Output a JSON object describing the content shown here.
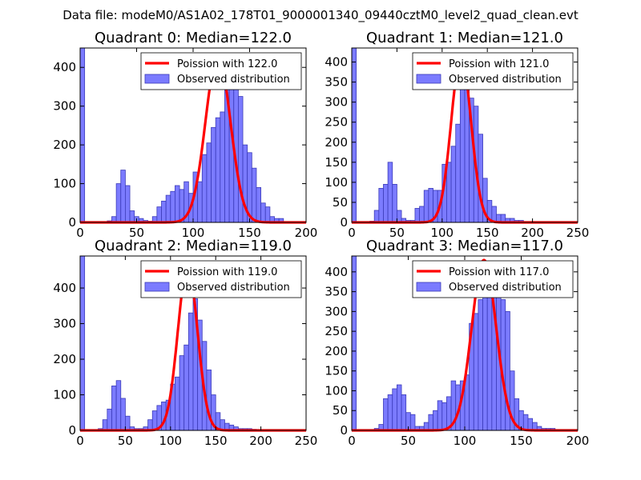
{
  "figure": {
    "suptitle": "Data file: modeM0/AS1A02_178T01_9000001340_09440cztM0_level2_quad_clean.evt"
  },
  "colors": {
    "bars": "#7b7bff",
    "bar_edge": "#3b3bb8",
    "poisson": "#ff0000"
  },
  "chart_data": [
    {
      "type": "bar",
      "title": "Quadrant 0: Median=122.0",
      "xlim": [
        0,
        200
      ],
      "ylim": [
        0,
        450
      ],
      "xticks": [
        "0",
        "50",
        "100",
        "150",
        "200"
      ],
      "yticks": [
        "0",
        "100",
        "200",
        "300",
        "400"
      ],
      "legend": {
        "line": "Poission with 122.0",
        "bars": "Observed distribution"
      },
      "bin_width": 4,
      "bins": [
        [
          0,
          450
        ],
        [
          20,
          2
        ],
        [
          24,
          4
        ],
        [
          28,
          15
        ],
        [
          32,
          100
        ],
        [
          36,
          135
        ],
        [
          40,
          95
        ],
        [
          44,
          30
        ],
        [
          48,
          15
        ],
        [
          52,
          10
        ],
        [
          56,
          5
        ],
        [
          60,
          3
        ],
        [
          64,
          15
        ],
        [
          68,
          40
        ],
        [
          72,
          55
        ],
        [
          76,
          70
        ],
        [
          80,
          80
        ],
        [
          84,
          95
        ],
        [
          88,
          85
        ],
        [
          92,
          105
        ],
        [
          96,
          75
        ],
        [
          100,
          130
        ],
        [
          104,
          105
        ],
        [
          108,
          175
        ],
        [
          112,
          205
        ],
        [
          116,
          245
        ],
        [
          120,
          270
        ],
        [
          124,
          285
        ],
        [
          128,
          430
        ],
        [
          132,
          370
        ],
        [
          136,
          350
        ],
        [
          140,
          325
        ],
        [
          144,
          200
        ],
        [
          148,
          180
        ],
        [
          152,
          140
        ],
        [
          156,
          90
        ],
        [
          160,
          50
        ],
        [
          164,
          40
        ],
        [
          168,
          15
        ],
        [
          172,
          10
        ],
        [
          176,
          10
        ]
      ],
      "poisson": {
        "mean": 122.0,
        "peak": 430
      }
    },
    {
      "type": "bar",
      "title": "Quadrant 1: Median=121.0",
      "xlim": [
        0,
        250
      ],
      "ylim": [
        0,
        435
      ],
      "xticks": [
        "0",
        "50",
        "100",
        "150",
        "200",
        "250"
      ],
      "yticks": [
        "0",
        "50",
        "100",
        "150",
        "200",
        "250",
        "300",
        "350",
        "400"
      ],
      "legend": {
        "line": "Poission with 121.0",
        "bars": "Observed distribution"
      },
      "bin_width": 5,
      "bins": [
        [
          0,
          435
        ],
        [
          20,
          3
        ],
        [
          25,
          30
        ],
        [
          30,
          85
        ],
        [
          35,
          95
        ],
        [
          40,
          150
        ],
        [
          45,
          95
        ],
        [
          50,
          30
        ],
        [
          55,
          10
        ],
        [
          60,
          5
        ],
        [
          65,
          5
        ],
        [
          70,
          35
        ],
        [
          75,
          40
        ],
        [
          80,
          80
        ],
        [
          85,
          85
        ],
        [
          90,
          80
        ],
        [
          95,
          80
        ],
        [
          100,
          145
        ],
        [
          105,
          150
        ],
        [
          110,
          190
        ],
        [
          115,
          245
        ],
        [
          120,
          380
        ],
        [
          125,
          375
        ],
        [
          130,
          310
        ],
        [
          135,
          290
        ],
        [
          140,
          220
        ],
        [
          145,
          110
        ],
        [
          150,
          55
        ],
        [
          155,
          40
        ],
        [
          160,
          20
        ],
        [
          165,
          20
        ],
        [
          170,
          10
        ],
        [
          175,
          10
        ],
        [
          180,
          5
        ],
        [
          185,
          5
        ]
      ],
      "poisson": {
        "mean": 121.0,
        "peak": 415
      }
    },
    {
      "type": "bar",
      "title": "Quadrant 2: Median=119.0",
      "xlim": [
        0,
        250
      ],
      "ylim": [
        0,
        490
      ],
      "xticks": [
        "0",
        "50",
        "100",
        "150",
        "200",
        "250"
      ],
      "yticks": [
        "0",
        "100",
        "200",
        "300",
        "400"
      ],
      "legend": {
        "line": "Poission with 119.0",
        "bars": "Observed distribution"
      },
      "bin_width": 5,
      "bins": [
        [
          0,
          490
        ],
        [
          20,
          5
        ],
        [
          25,
          30
        ],
        [
          30,
          60
        ],
        [
          35,
          125
        ],
        [
          40,
          140
        ],
        [
          45,
          90
        ],
        [
          50,
          40
        ],
        [
          55,
          10
        ],
        [
          60,
          5
        ],
        [
          65,
          5
        ],
        [
          70,
          10
        ],
        [
          75,
          30
        ],
        [
          80,
          55
        ],
        [
          85,
          70
        ],
        [
          90,
          80
        ],
        [
          95,
          85
        ],
        [
          100,
          130
        ],
        [
          105,
          150
        ],
        [
          110,
          210
        ],
        [
          115,
          240
        ],
        [
          120,
          330
        ],
        [
          125,
          370
        ],
        [
          130,
          310
        ],
        [
          135,
          250
        ],
        [
          140,
          170
        ],
        [
          145,
          100
        ],
        [
          150,
          50
        ],
        [
          155,
          30
        ],
        [
          160,
          20
        ],
        [
          165,
          15
        ],
        [
          170,
          10
        ],
        [
          175,
          5
        ],
        [
          180,
          5
        ],
        [
          185,
          5
        ],
        [
          190,
          3
        ],
        [
          195,
          2
        ]
      ],
      "poisson": {
        "mean": 119.0,
        "peak": 460
      }
    },
    {
      "type": "bar",
      "title": "Quadrant 3: Median=117.0",
      "xlim": [
        0,
        200
      ],
      "ylim": [
        0,
        440
      ],
      "xticks": [
        "0",
        "50",
        "100",
        "150",
        "200"
      ],
      "yticks": [
        "0",
        "50",
        "100",
        "150",
        "200",
        "250",
        "300",
        "350",
        "400"
      ],
      "legend": {
        "line": "Poission with 117.0",
        "bars": "Observed distribution"
      },
      "bin_width": 4,
      "bins": [
        [
          0,
          440
        ],
        [
          20,
          5
        ],
        [
          24,
          15
        ],
        [
          28,
          80
        ],
        [
          32,
          90
        ],
        [
          36,
          105
        ],
        [
          40,
          115
        ],
        [
          44,
          90
        ],
        [
          48,
          45
        ],
        [
          52,
          40
        ],
        [
          56,
          10
        ],
        [
          60,
          10
        ],
        [
          64,
          20
        ],
        [
          68,
          40
        ],
        [
          72,
          50
        ],
        [
          76,
          75
        ],
        [
          80,
          70
        ],
        [
          84,
          85
        ],
        [
          88,
          125
        ],
        [
          92,
          115
        ],
        [
          96,
          125
        ],
        [
          100,
          140
        ],
        [
          104,
          270
        ],
        [
          108,
          295
        ],
        [
          112,
          330
        ],
        [
          116,
          350
        ],
        [
          120,
          390
        ],
        [
          124,
          355
        ],
        [
          128,
          380
        ],
        [
          132,
          330
        ],
        [
          136,
          300
        ],
        [
          140,
          150
        ],
        [
          144,
          80
        ],
        [
          148,
          50
        ],
        [
          152,
          40
        ],
        [
          156,
          30
        ],
        [
          160,
          20
        ],
        [
          164,
          10
        ],
        [
          168,
          5
        ],
        [
          172,
          5
        ],
        [
          176,
          5
        ]
      ],
      "poisson": {
        "mean": 117.0,
        "peak": 430
      }
    }
  ]
}
